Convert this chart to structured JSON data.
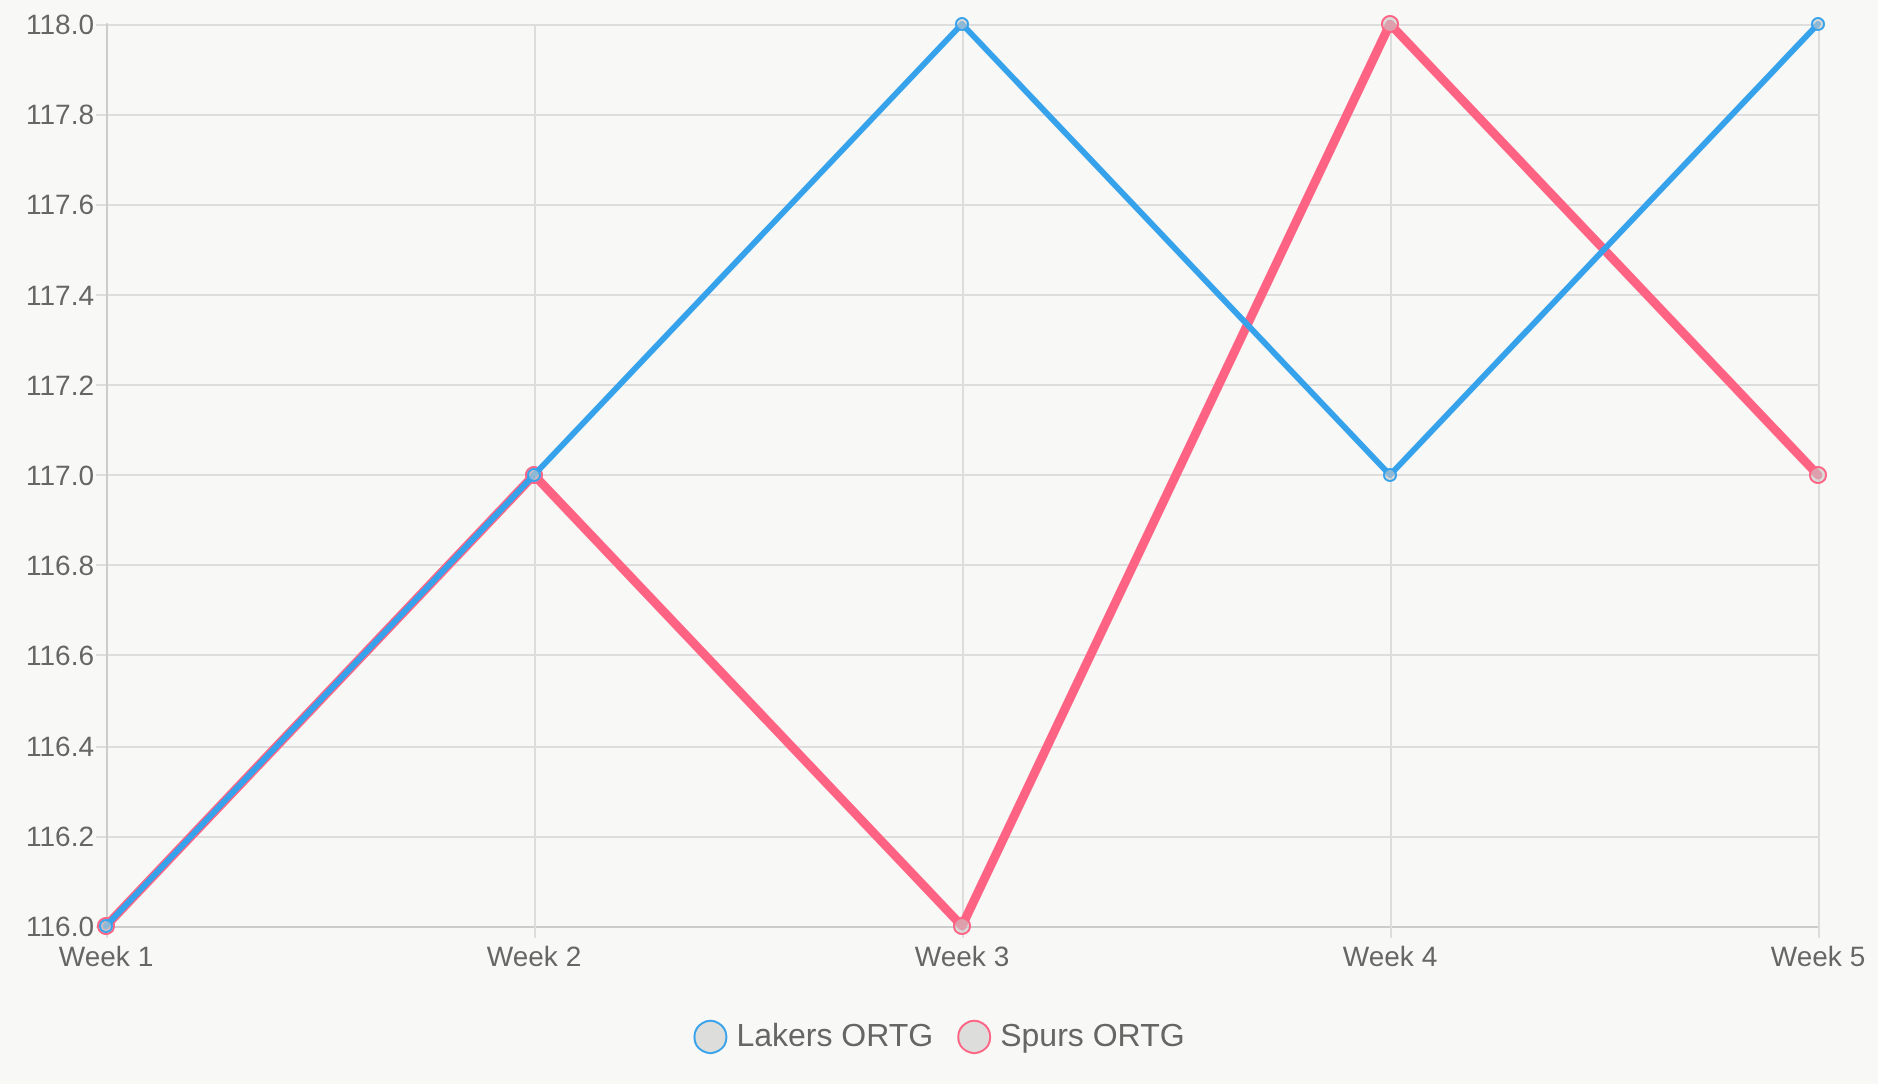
{
  "chart_data": {
    "type": "line",
    "categories": [
      "Week 1",
      "Week 2",
      "Week 3",
      "Week 4",
      "Week 5"
    ],
    "series": [
      {
        "name": "Lakers ORTG",
        "color": "#36a2eb",
        "values": [
          116,
          117,
          118,
          117,
          118
        ]
      },
      {
        "name": "Spurs ORTG",
        "color": "#ff6384",
        "values": [
          116,
          117,
          116,
          118,
          117
        ]
      }
    ],
    "ylim": [
      116,
      118
    ],
    "yticks": [
      {
        "value": 116,
        "label": "116.0"
      },
      116.2,
      116.4,
      116.6,
      116.8,
      {
        "value": 117,
        "label": "117.0"
      },
      117.2,
      117.4,
      117.6,
      117.8,
      {
        "value": 118,
        "label": "118.0"
      }
    ],
    "grid": true,
    "legend": "bottom",
    "marker": "circle",
    "line_style": "solid"
  }
}
